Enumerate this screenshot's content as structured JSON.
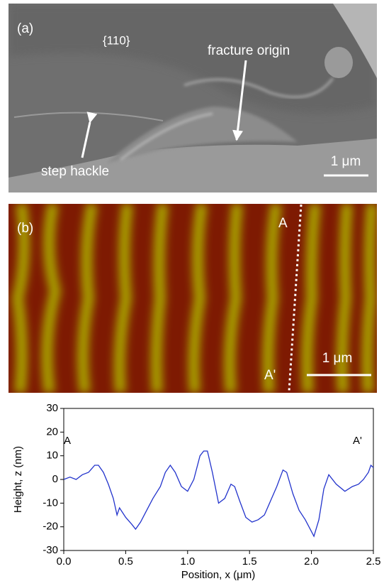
{
  "figure": {
    "panel_a": {
      "label": "(a)",
      "plane": "{110}",
      "origin_note": "fracture origin",
      "hackle_note": "step hackle",
      "scale": "1 μm"
    },
    "panel_b": {
      "label": "(b)",
      "point_a": "A",
      "point_b": "A'",
      "scale": "1 μm"
    }
  },
  "chart_data": {
    "type": "line",
    "xlabel": "Position, x (μm)",
    "ylabel": "Height, z (nm)",
    "annotations": [
      "A",
      "A'"
    ],
    "color": "#2233cc",
    "xlim": [
      0,
      2.5
    ],
    "ylim": [
      -30,
      30
    ],
    "xticks": [
      {
        "value": 0,
        "label": "0.0"
      },
      {
        "value": 0.5,
        "label": "0.5"
      },
      {
        "value": 1,
        "label": "1.0"
      },
      {
        "value": 1.5,
        "label": "1.5"
      },
      {
        "value": 2,
        "label": "2.0"
      },
      {
        "value": 2.5,
        "label": "2.5"
      }
    ],
    "yticks": [
      -30,
      -20,
      -10,
      0,
      10,
      20,
      30
    ],
    "x": [
      0,
      0.05,
      0.1,
      0.15,
      0.2,
      0.25,
      0.28,
      0.32,
      0.36,
      0.4,
      0.43,
      0.45,
      0.5,
      0.55,
      0.58,
      0.62,
      0.67,
      0.72,
      0.78,
      0.82,
      0.86,
      0.9,
      0.95,
      1.0,
      1.05,
      1.1,
      1.13,
      1.16,
      1.2,
      1.25,
      1.3,
      1.35,
      1.38,
      1.42,
      1.47,
      1.52,
      1.57,
      1.62,
      1.67,
      1.72,
      1.77,
      1.8,
      1.85,
      1.9,
      1.95,
      2.0,
      2.02,
      2.06,
      2.1,
      2.14,
      2.2,
      2.27,
      2.33,
      2.38,
      2.42,
      2.46,
      2.48,
      2.5
    ],
    "values": [
      0,
      1,
      0,
      2,
      3,
      6,
      6,
      3,
      -2,
      -8,
      -15,
      -12,
      -16,
      -19,
      -21,
      -18,
      -13,
      -8,
      -3,
      3,
      6,
      3,
      -3,
      -5,
      0,
      10,
      12,
      12,
      3,
      -10,
      -8,
      -2,
      -3,
      -9,
      -16,
      -18,
      -17,
      -15,
      -9,
      -3,
      4,
      3,
      -6,
      -13,
      -17,
      -22,
      -24,
      -17,
      -4,
      2,
      -2,
      -5,
      -3,
      -2,
      0,
      3,
      6,
      5
    ]
  }
}
